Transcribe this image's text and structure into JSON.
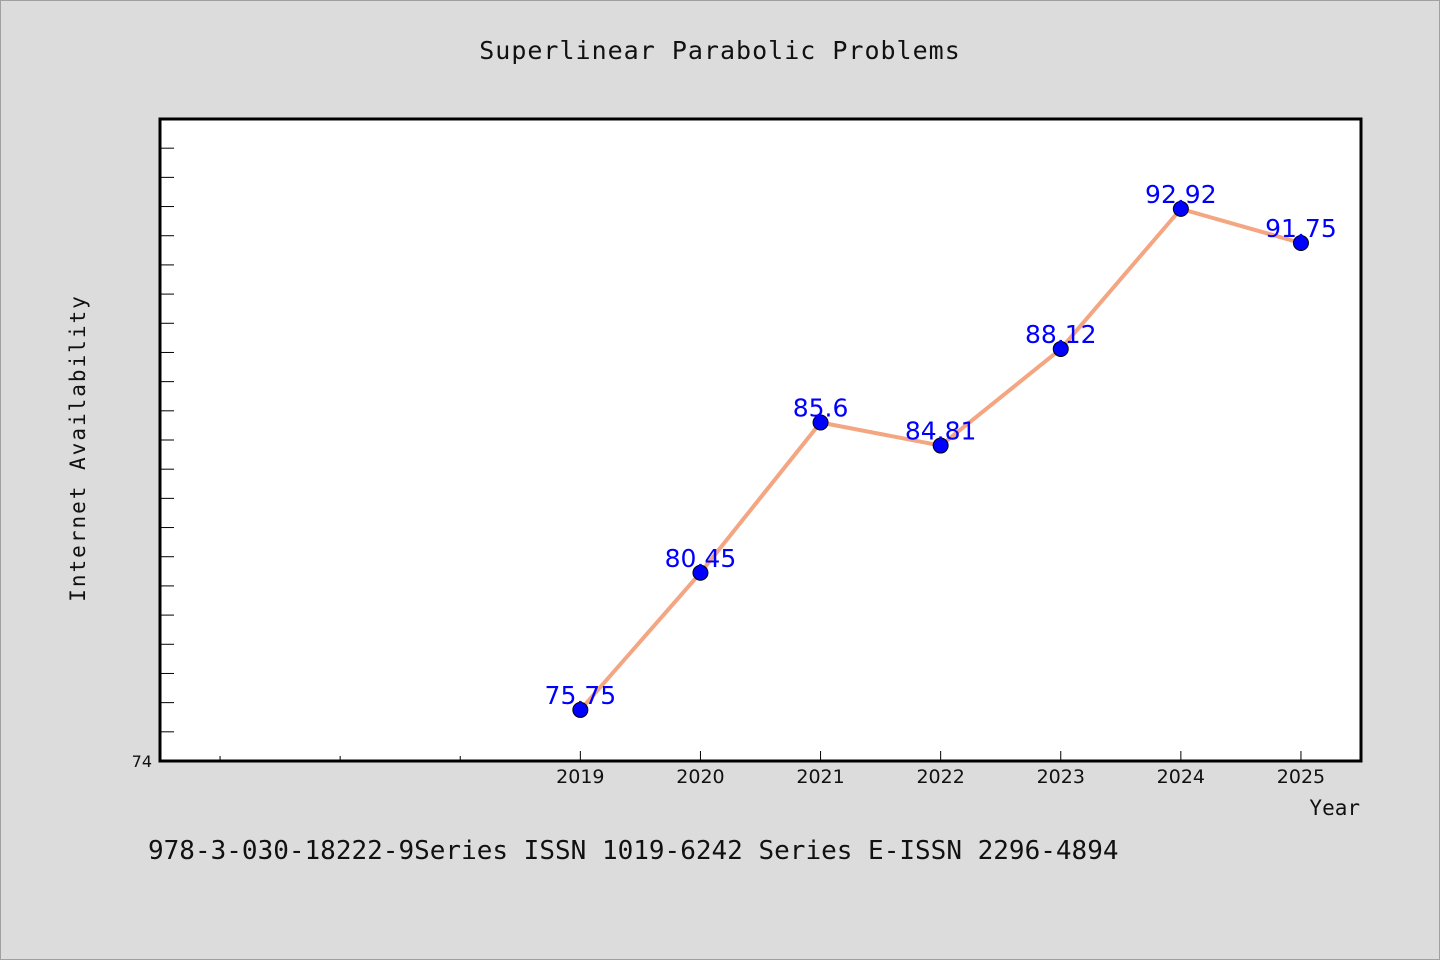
{
  "footer_text": "978-3-030-18222-9Series ISSN 1019-6242 Series E-ISSN 2296-4894",
  "chart_data": {
    "type": "line",
    "title": "Superlinear Parabolic Problems",
    "xlabel": "Year",
    "ylabel": "Internet Availability",
    "x": [
      "2019",
      "2020",
      "2021",
      "2022",
      "2023",
      "2024",
      "2025"
    ],
    "series": [
      {
        "values": [
          75.75,
          80.45,
          85.6,
          84.81,
          88.12,
          92.92,
          91.75
        ]
      }
    ],
    "data_labels": [
      "75.75",
      "80.45",
      "85.6",
      "84.81",
      "88.12",
      "92.92",
      "91.75"
    ],
    "y_tick_labels": [
      "74"
    ],
    "ylim": [
      74,
      96
    ],
    "xlim": [
      2015.5,
      2025.5
    ],
    "grid": false,
    "legend": "none",
    "colors": {
      "line": "#f4a582",
      "marker": "#0000ff",
      "label": "#0000ff",
      "background": "#dcdcdc",
      "plot_bg": "#ffffff"
    }
  }
}
